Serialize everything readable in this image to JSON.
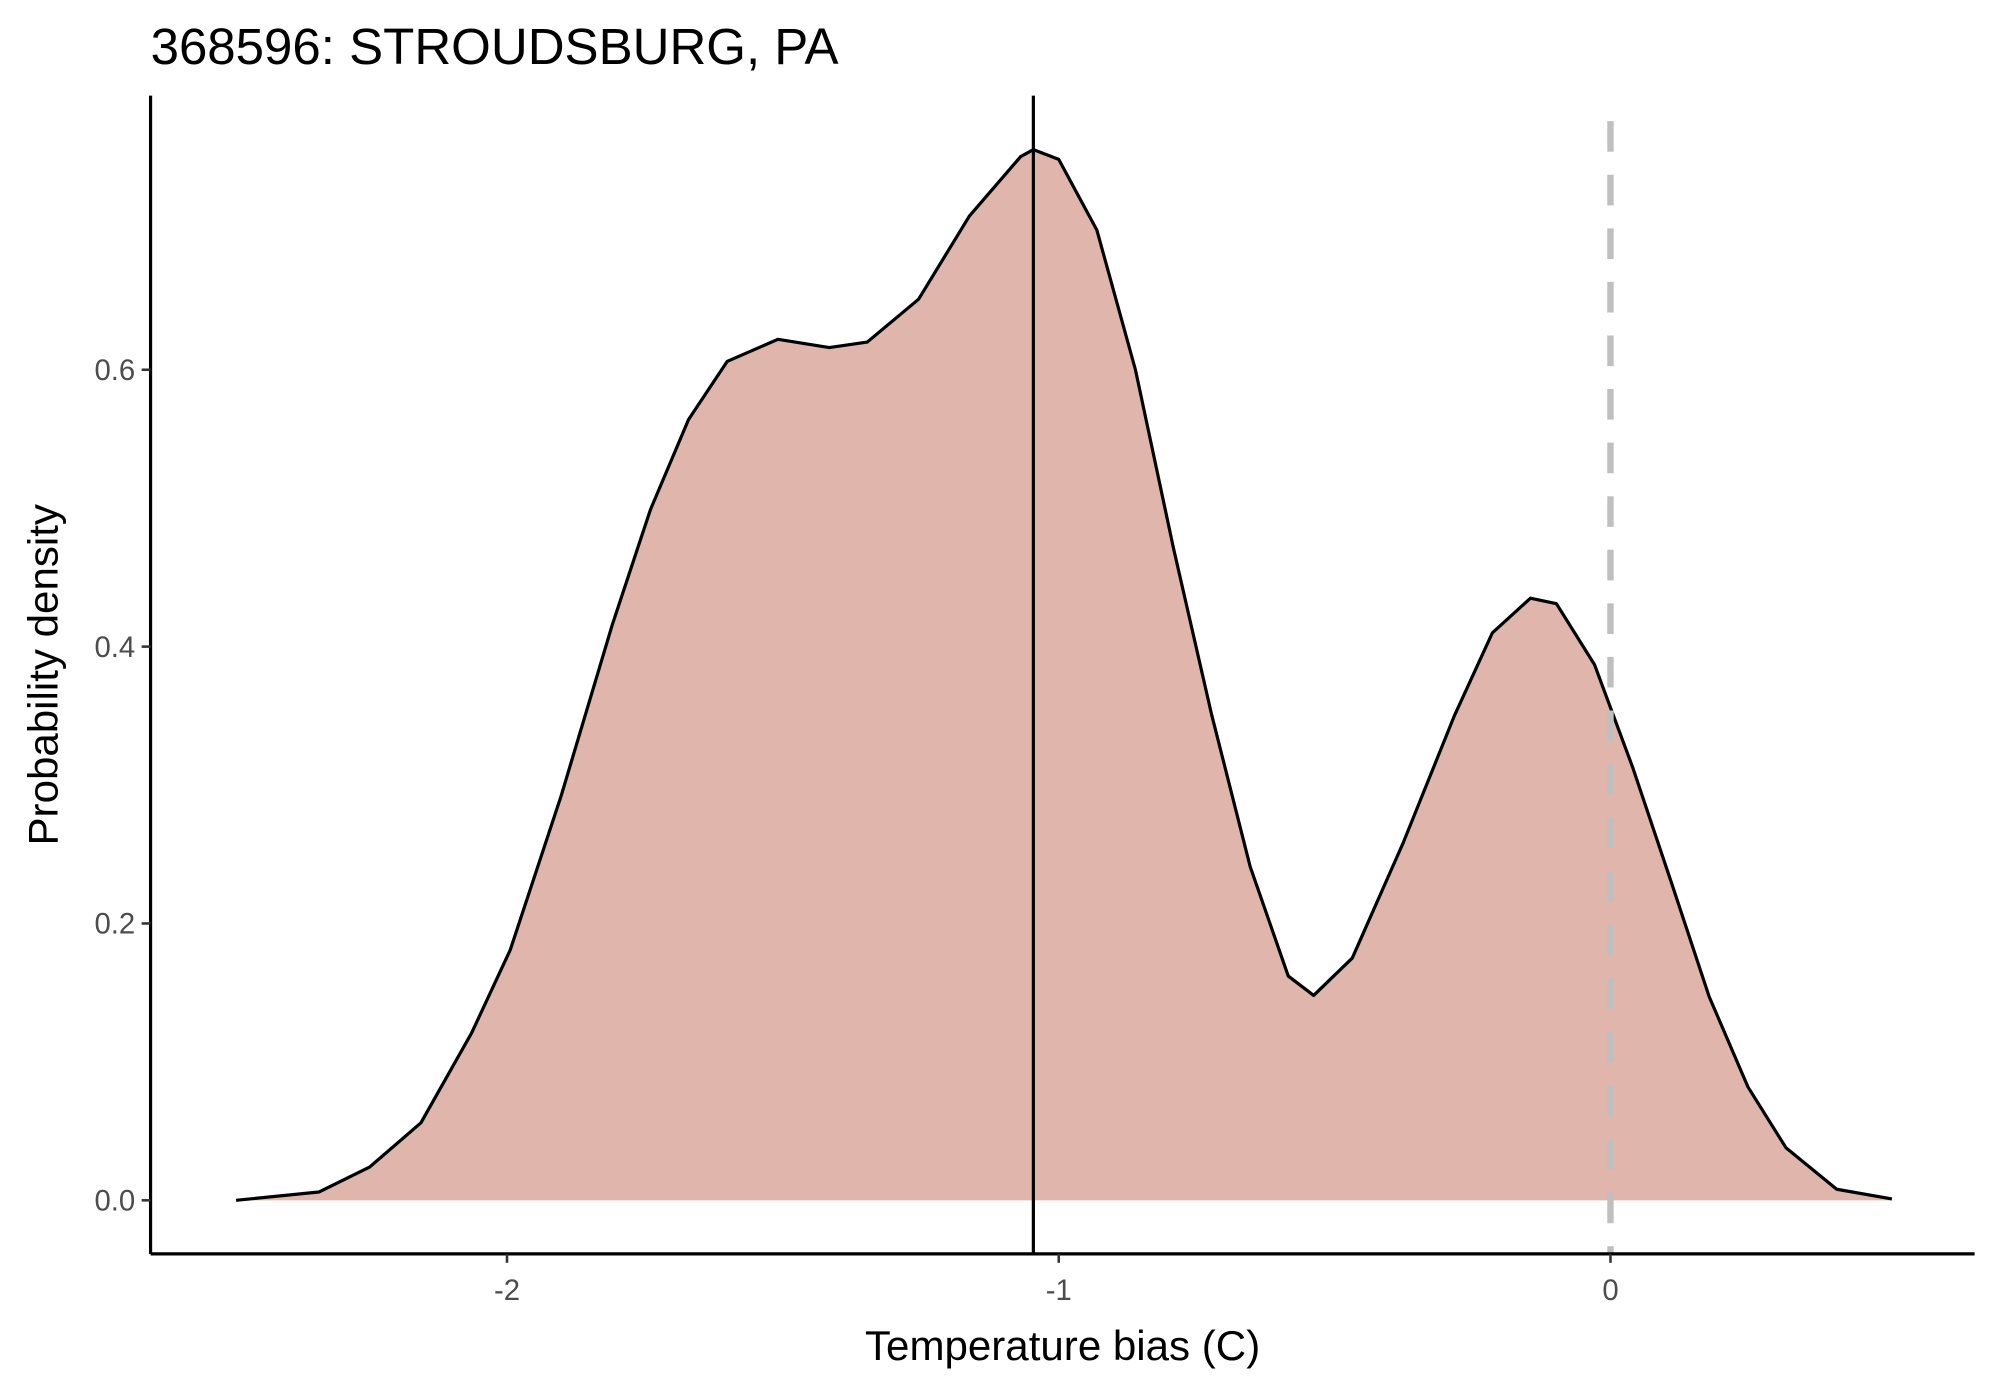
{
  "chart_data": {
    "type": "density",
    "title": "368596: STROUDSBURG, PA",
    "x_label": "Temperature bias (C)",
    "y_label": "Probability density",
    "x": [
      -2.491,
      -2.341,
      -2.249,
      -2.156,
      -2.064,
      -1.994,
      -1.902,
      -1.809,
      -1.74,
      -1.671,
      -1.601,
      -1.509,
      -1.416,
      -1.347,
      -1.254,
      -1.162,
      -1.069,
      -1.046,
      -1.0,
      -0.931,
      -0.861,
      -0.792,
      -0.723,
      -0.653,
      -0.584,
      -0.538,
      -0.468,
      -0.376,
      -0.283,
      -0.214,
      -0.145,
      -0.098,
      -0.029,
      0.04,
      0.11,
      0.179,
      0.249,
      0.318,
      0.41,
      0.51
    ],
    "values": [
      0,
      0.006,
      0.024,
      0.056,
      0.121,
      0.181,
      0.292,
      0.416,
      0.499,
      0.564,
      0.606,
      0.622,
      0.616,
      0.62,
      0.651,
      0.711,
      0.754,
      0.759,
      0.752,
      0.701,
      0.6,
      0.471,
      0.351,
      0.241,
      0.162,
      0.148,
      0.175,
      0.258,
      0.35,
      0.41,
      0.435,
      0.431,
      0.387,
      0.313,
      0.23,
      0.147,
      0.082,
      0.038,
      0.008,
      0.001
    ],
    "fill_color": "#e0b6ac",
    "line_color": "#000000",
    "vlines": [
      {
        "value": -1.046,
        "color": "#000000",
        "dashed": false
      },
      {
        "value": 0,
        "color": "#bfbfbf",
        "dashed": true
      }
    ],
    "xlim": [
      -2.646,
      0.66
    ],
    "ylim": [
      -0.0387,
      0.798
    ],
    "xticks": [
      -2,
      -1,
      0
    ],
    "yticks": [
      {
        "value": 0,
        "label": "0.0"
      },
      0.2,
      0.4,
      0.6
    ],
    "grid": false
  }
}
